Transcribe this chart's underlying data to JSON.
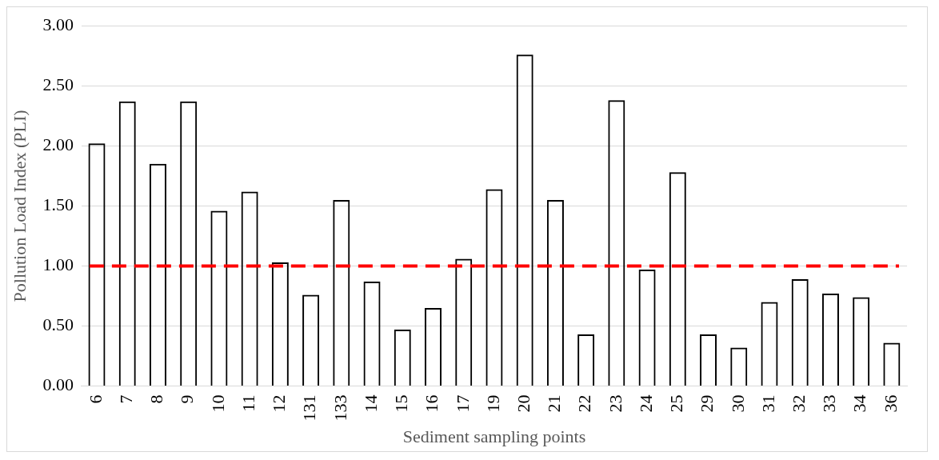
{
  "chart_data": {
    "type": "bar",
    "xlabel": "Sediment sampling points",
    "ylabel": "Pollution Load Index (PLI)",
    "categories": [
      "6",
      "7",
      "8",
      "9",
      "10",
      "11",
      "12",
      "131",
      "133",
      "14",
      "15",
      "16",
      "17",
      "19",
      "20",
      "21",
      "22",
      "23",
      "24",
      "25",
      "29",
      "30",
      "31",
      "32",
      "33",
      "34",
      "36"
    ],
    "values": [
      2.02,
      2.37,
      1.85,
      2.37,
      1.46,
      1.62,
      1.03,
      0.76,
      1.55,
      0.87,
      0.47,
      0.65,
      1.06,
      1.64,
      2.76,
      1.55,
      0.43,
      2.38,
      0.97,
      1.78,
      0.43,
      0.32,
      0.7,
      0.89,
      0.77,
      0.74,
      0.36
    ],
    "color": "#000000",
    "ylim": [
      0,
      3
    ],
    "yticks": [
      {
        "value": 0,
        "label": "0.00"
      },
      {
        "value": 0.5,
        "label": "0.50"
      },
      {
        "value": 1,
        "label": "1.00"
      },
      {
        "value": 1.5,
        "label": "1.50"
      },
      {
        "value": 2,
        "label": "2.00"
      },
      {
        "value": 2.5,
        "label": "2.50"
      },
      {
        "value": 3,
        "label": "3.00"
      }
    ],
    "grid": "y",
    "legend": false,
    "ref_lines": [
      {
        "axis": "y",
        "value": 1,
        "color": "#ff0000",
        "line_style": "dashed"
      }
    ]
  }
}
